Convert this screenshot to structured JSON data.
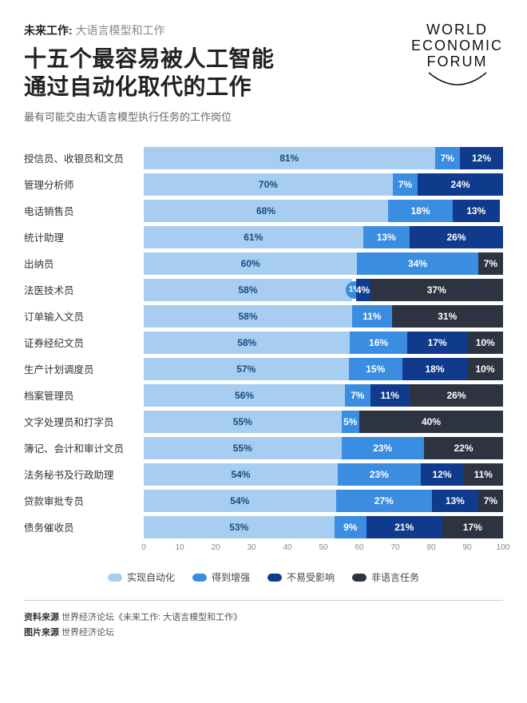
{
  "kicker_bold": "未来工作: ",
  "kicker_light": "大语言模型和工作",
  "title_line1": "十五个最容易被人工智能",
  "title_line2": "通过自动化取代的工作",
  "subtitle": "最有可能交由大语言模型执行任务的工作岗位",
  "logo_lines": [
    "WORLD",
    "ECONOMIC",
    "FORUM"
  ],
  "colors": {
    "c1": "#a7cef0",
    "c2": "#3a8de0",
    "c3": "#103a8c",
    "c4": "#2d3340",
    "bg": "#ffffff",
    "text_on_c1": "#1a4a80",
    "text_on_c2": "#ffffff",
    "text_on_c3": "#ffffff",
    "text_on_c4": "#ffffff"
  },
  "series": [
    {
      "key": "c1",
      "label": "实现自动化"
    },
    {
      "key": "c2",
      "label": "得到增强"
    },
    {
      "key": "c3",
      "label": "不易受影响"
    },
    {
      "key": "c4",
      "label": "非语言任务"
    }
  ],
  "xaxis": {
    "min": 0,
    "max": 100,
    "step": 10
  },
  "rows": [
    {
      "label": "授信员、收银员和文员",
      "values": [
        81,
        7,
        12,
        0
      ]
    },
    {
      "label": "管理分析师",
      "values": [
        70,
        7,
        24,
        0
      ]
    },
    {
      "label": "电话销售员",
      "values": [
        68,
        18,
        13,
        0
      ]
    },
    {
      "label": "统计助理",
      "values": [
        61,
        13,
        26,
        0
      ]
    },
    {
      "label": "出纳员",
      "values": [
        60,
        34,
        0,
        7
      ]
    },
    {
      "label": "法医技术员",
      "values": [
        58,
        1,
        4,
        37
      ],
      "bubble": 1
    },
    {
      "label": "订单输入文员",
      "values": [
        58,
        11,
        0,
        31
      ]
    },
    {
      "label": "证券经纪文员",
      "values": [
        58,
        16,
        17,
        10
      ]
    },
    {
      "label": "生产计划调度员",
      "values": [
        57,
        15,
        18,
        10
      ]
    },
    {
      "label": "档案管理员",
      "values": [
        56,
        7,
        11,
        26
      ]
    },
    {
      "label": "文字处理员和打字员",
      "values": [
        55,
        5,
        0,
        40
      ]
    },
    {
      "label": "簿记、会计和审计文员",
      "values": [
        55,
        23,
        0,
        22
      ]
    },
    {
      "label": "法务秘书及行政助理",
      "values": [
        54,
        23,
        12,
        11
      ]
    },
    {
      "label": "贷款审批专员",
      "values": [
        54,
        27,
        13,
        7
      ]
    },
    {
      "label": "债务催收员",
      "values": [
        53,
        9,
        21,
        17
      ]
    }
  ],
  "footer": {
    "line1_bold": "资料来源",
    "line1_rest": " 世界经济论坛《未来工作: 大语言模型和工作》",
    "line2_bold": "图片来源",
    "line2_rest": " 世界经济论坛"
  }
}
